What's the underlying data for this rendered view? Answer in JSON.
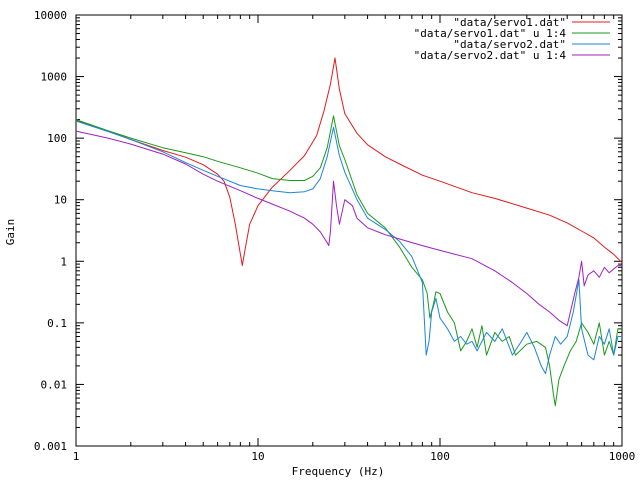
{
  "chart_data": {
    "type": "line",
    "xlabel": "Frequency (Hz)",
    "ylabel": "Gain",
    "x_scale": "log",
    "y_scale": "log",
    "xlim": [
      1,
      1000
    ],
    "ylim": [
      0.001,
      10000
    ],
    "x_ticks": [
      {
        "value": 1,
        "label": "1"
      },
      {
        "value": 10,
        "label": "10"
      },
      {
        "value": 100,
        "label": "100"
      },
      {
        "value": 1000,
        "label": "1000"
      }
    ],
    "y_ticks": [
      {
        "value": 0.001,
        "label": "0.001"
      },
      {
        "value": 0.01,
        "label": "0.01"
      },
      {
        "value": 0.1,
        "label": "0.1"
      },
      {
        "value": 1,
        "label": "1"
      },
      {
        "value": 10,
        "label": "10"
      },
      {
        "value": 100,
        "label": "100"
      },
      {
        "value": 1000,
        "label": "1000"
      },
      {
        "value": 10000,
        "label": "10000"
      }
    ],
    "grid": false,
    "legend_position": "top-right",
    "series": [
      {
        "name": "\"data/servo1.dat\"",
        "color": "#e41a1c",
        "points": [
          [
            1,
            195
          ],
          [
            1.5,
            130
          ],
          [
            2,
            95
          ],
          [
            3,
            63
          ],
          [
            4,
            49
          ],
          [
            5,
            37
          ],
          [
            6,
            26
          ],
          [
            6.5,
            20
          ],
          [
            7,
            11
          ],
          [
            7.5,
            4
          ],
          [
            8,
            1.3
          ],
          [
            8.2,
            0.85
          ],
          [
            8.5,
            1.6
          ],
          [
            9,
            4
          ],
          [
            10,
            8
          ],
          [
            12,
            16
          ],
          [
            15,
            30
          ],
          [
            18,
            52
          ],
          [
            21,
            110
          ],
          [
            23,
            270
          ],
          [
            25,
            750
          ],
          [
            26.5,
            2000
          ],
          [
            28,
            620
          ],
          [
            30,
            250
          ],
          [
            35,
            120
          ],
          [
            40,
            78
          ],
          [
            50,
            50
          ],
          [
            60,
            38
          ],
          [
            80,
            25
          ],
          [
            100,
            20
          ],
          [
            150,
            13
          ],
          [
            200,
            10.5
          ],
          [
            300,
            7.3
          ],
          [
            400,
            5.6
          ],
          [
            500,
            4.2
          ],
          [
            600,
            3.1
          ],
          [
            700,
            2.4
          ],
          [
            800,
            1.7
          ],
          [
            900,
            1.3
          ],
          [
            1000,
            0.95
          ]
        ]
      },
      {
        "name": "\"data/servo1.dat\" u 1:4",
        "color": "#1a9a1a",
        "points": [
          [
            1,
            200
          ],
          [
            1.5,
            132
          ],
          [
            2,
            100
          ],
          [
            3,
            70
          ],
          [
            4,
            58
          ],
          [
            5,
            50
          ],
          [
            6,
            42
          ],
          [
            8,
            33
          ],
          [
            10,
            27
          ],
          [
            12,
            22
          ],
          [
            15,
            20.5
          ],
          [
            18,
            20.5
          ],
          [
            20,
            24
          ],
          [
            22,
            33
          ],
          [
            24,
            70
          ],
          [
            26,
            230
          ],
          [
            28,
            75
          ],
          [
            30,
            45
          ],
          [
            35,
            12
          ],
          [
            40,
            6
          ],
          [
            50,
            3.5
          ],
          [
            60,
            1.7
          ],
          [
            70,
            0.8
          ],
          [
            80,
            0.5
          ],
          [
            85,
            0.3
          ],
          [
            88,
            0.12
          ],
          [
            92,
            0.2
          ],
          [
            95,
            0.32
          ],
          [
            100,
            0.3
          ],
          [
            110,
            0.15
          ],
          [
            120,
            0.1
          ],
          [
            130,
            0.035
          ],
          [
            140,
            0.05
          ],
          [
            150,
            0.08
          ],
          [
            160,
            0.04
          ],
          [
            170,
            0.09
          ],
          [
            180,
            0.03
          ],
          [
            200,
            0.07
          ],
          [
            220,
            0.05
          ],
          [
            240,
            0.06
          ],
          [
            260,
            0.03
          ],
          [
            300,
            0.045
          ],
          [
            340,
            0.05
          ],
          [
            380,
            0.04
          ],
          [
            400,
            0.02
          ],
          [
            420,
            0.007
          ],
          [
            430,
            0.0045
          ],
          [
            450,
            0.012
          ],
          [
            480,
            0.02
          ],
          [
            520,
            0.035
          ],
          [
            560,
            0.05
          ],
          [
            600,
            0.1
          ],
          [
            650,
            0.07
          ],
          [
            700,
            0.045
          ],
          [
            750,
            0.1
          ],
          [
            800,
            0.03
          ],
          [
            850,
            0.05
          ],
          [
            900,
            0.03
          ],
          [
            950,
            0.08
          ],
          [
            1000,
            0.08
          ]
        ]
      },
      {
        "name": "\"data/servo2.dat\"",
        "color": "#1c86d6",
        "points": [
          [
            1,
            190
          ],
          [
            1.5,
            128
          ],
          [
            2,
            95
          ],
          [
            3,
            60
          ],
          [
            4,
            40
          ],
          [
            5,
            30
          ],
          [
            6,
            24
          ],
          [
            8,
            17
          ],
          [
            10,
            15
          ],
          [
            12,
            14
          ],
          [
            15,
            13
          ],
          [
            18,
            13.5
          ],
          [
            20,
            15
          ],
          [
            22,
            22
          ],
          [
            24,
            50
          ],
          [
            26,
            150
          ],
          [
            28,
            52
          ],
          [
            30,
            28
          ],
          [
            35,
            10
          ],
          [
            40,
            5
          ],
          [
            50,
            3.3
          ],
          [
            60,
            2.1
          ],
          [
            70,
            1.2
          ],
          [
            80,
            0.45
          ],
          [
            84,
            0.03
          ],
          [
            87,
            0.05
          ],
          [
            90,
            0.15
          ],
          [
            95,
            0.25
          ],
          [
            100,
            0.12
          ],
          [
            110,
            0.08
          ],
          [
            120,
            0.05
          ],
          [
            130,
            0.06
          ],
          [
            140,
            0.045
          ],
          [
            150,
            0.05
          ],
          [
            160,
            0.035
          ],
          [
            180,
            0.07
          ],
          [
            200,
            0.05
          ],
          [
            220,
            0.08
          ],
          [
            250,
            0.03
          ],
          [
            280,
            0.05
          ],
          [
            300,
            0.07
          ],
          [
            330,
            0.04
          ],
          [
            360,
            0.02
          ],
          [
            380,
            0.015
          ],
          [
            400,
            0.03
          ],
          [
            430,
            0.06
          ],
          [
            460,
            0.045
          ],
          [
            500,
            0.06
          ],
          [
            540,
            0.15
          ],
          [
            580,
            0.5
          ],
          [
            600,
            0.08
          ],
          [
            650,
            0.03
          ],
          [
            700,
            0.025
          ],
          [
            750,
            0.06
          ],
          [
            800,
            0.045
          ],
          [
            850,
            0.08
          ],
          [
            900,
            0.03
          ],
          [
            950,
            0.06
          ],
          [
            1000,
            0.06
          ]
        ]
      },
      {
        "name": "\"data/servo2.dat\" u 1:4",
        "color": "#a020c0",
        "points": [
          [
            1,
            130
          ],
          [
            1.5,
            100
          ],
          [
            2,
            80
          ],
          [
            3,
            55
          ],
          [
            4,
            38
          ],
          [
            5,
            26
          ],
          [
            6,
            20
          ],
          [
            8,
            14
          ],
          [
            10,
            10.5
          ],
          [
            12,
            8.5
          ],
          [
            15,
            6.5
          ],
          [
            18,
            5
          ],
          [
            20,
            4
          ],
          [
            22,
            3
          ],
          [
            24,
            2
          ],
          [
            24.5,
            1.8
          ],
          [
            25,
            3
          ],
          [
            26,
            20
          ],
          [
            27,
            8
          ],
          [
            28,
            4
          ],
          [
            30,
            10
          ],
          [
            33,
            8
          ],
          [
            35,
            5
          ],
          [
            40,
            3.5
          ],
          [
            50,
            2.7
          ],
          [
            60,
            2.3
          ],
          [
            80,
            1.8
          ],
          [
            100,
            1.5
          ],
          [
            150,
            1.1
          ],
          [
            200,
            0.7
          ],
          [
            250,
            0.45
          ],
          [
            300,
            0.3
          ],
          [
            350,
            0.2
          ],
          [
            400,
            0.15
          ],
          [
            450,
            0.11
          ],
          [
            500,
            0.09
          ],
          [
            550,
            0.3
          ],
          [
            580,
            0.55
          ],
          [
            600,
            1
          ],
          [
            620,
            0.4
          ],
          [
            650,
            0.6
          ],
          [
            700,
            0.7
          ],
          [
            750,
            0.55
          ],
          [
            800,
            0.8
          ],
          [
            850,
            0.65
          ],
          [
            900,
            0.75
          ],
          [
            950,
            0.85
          ],
          [
            1000,
            0.85
          ]
        ]
      }
    ]
  }
}
